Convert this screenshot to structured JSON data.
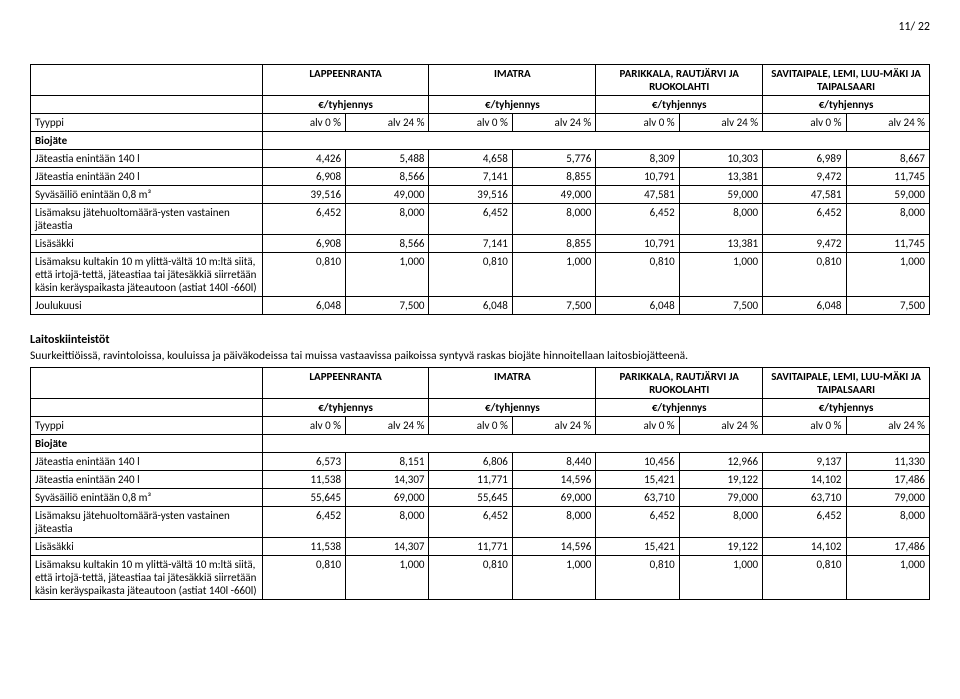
{
  "page_number": "11/ 22",
  "cities": [
    "LAPPEENRANTA",
    "IMATRA",
    "PARIKKALA, RAUTJÄRVI JA RUOKOLAHTI",
    "SAVITAIPALE, LEMI, LUU-MÄKI JA TAIPALSAARI"
  ],
  "unit_label": "€/tyhjennys",
  "type_label": "Tyyppi",
  "vat_labels": [
    "alv 0 %",
    "alv 24 %"
  ],
  "section1": {
    "category": "Biojäte",
    "rows": [
      {
        "label": "Jäteastia enintään 140 l",
        "vals": [
          "4,426",
          "5,488",
          "4,658",
          "5,776",
          "8,309",
          "10,303",
          "6,989",
          "8,667"
        ]
      },
      {
        "label": "Jäteastia enintään 240 l",
        "vals": [
          "6,908",
          "8,566",
          "7,141",
          "8,855",
          "10,791",
          "13,381",
          "9,472",
          "11,745"
        ]
      },
      {
        "label": "Syväsäiliö enintään 0,8 m³",
        "vals": [
          "39,516",
          "49,000",
          "39,516",
          "49,000",
          "47,581",
          "59,000",
          "47,581",
          "59,000"
        ]
      },
      {
        "label": "Lisämaksu jätehuoltomäärä-ysten vastainen jäteastia",
        "vals": [
          "6,452",
          "8,000",
          "6,452",
          "8,000",
          "6,452",
          "8,000",
          "6,452",
          "8,000"
        ]
      },
      {
        "label": "Lisäsäkki",
        "vals": [
          "6,908",
          "8,566",
          "7,141",
          "8,855",
          "10,791",
          "13,381",
          "9,472",
          "11,745"
        ]
      },
      {
        "label": "Lisämaksu kultakin 10 m ylittä-vältä 10 m:ltä siitä, että irtojä-tettä, jäteastiaa tai jätesäkkiä siirretään käsin keräyspaikasta jäteautoon (astiat 140l -660l)",
        "vals": [
          "0,810",
          "1,000",
          "0,810",
          "1,000",
          "0,810",
          "1,000",
          "0,810",
          "1,000"
        ]
      },
      {
        "label": "Joulukuusi",
        "vals": [
          "6,048",
          "7,500",
          "6,048",
          "7,500",
          "6,048",
          "7,500",
          "6,048",
          "7,500"
        ]
      }
    ]
  },
  "mid_title": "Laitoskiinteistöt",
  "mid_desc": "Suurkeittiöissä, ravintoloissa, kouluissa ja päiväkodeissa tai muissa vastaavissa paikoissa syntyvä raskas biojäte hinnoitellaan laitosbiojätteenä.",
  "section2": {
    "category": "Biojäte",
    "rows": [
      {
        "label": "Jäteastia enintään 140 l",
        "vals": [
          "6,573",
          "8,151",
          "6,806",
          "8,440",
          "10,456",
          "12,966",
          "9,137",
          "11,330"
        ]
      },
      {
        "label": "Jäteastia enintään 240 l",
        "vals": [
          "11,538",
          "14,307",
          "11,771",
          "14,596",
          "15,421",
          "19,122",
          "14,102",
          "17,486"
        ]
      },
      {
        "label": "Syväsäiliö enintään 0,8 m³",
        "vals": [
          "55,645",
          "69,000",
          "55,645",
          "69,000",
          "63,710",
          "79,000",
          "63,710",
          "79,000"
        ]
      },
      {
        "label": "Lisämaksu jätehuoltomäärä-ysten vastainen jäteastia",
        "vals": [
          "6,452",
          "8,000",
          "6,452",
          "8,000",
          "6,452",
          "8,000",
          "6,452",
          "8,000"
        ]
      },
      {
        "label": "Lisäsäkki",
        "vals": [
          "11,538",
          "14,307",
          "11,771",
          "14,596",
          "15,421",
          "19,122",
          "14,102",
          "17,486"
        ]
      },
      {
        "label": "Lisämaksu kultakin 10 m ylittä-vältä 10 m:ltä siitä, että irtojä-tettä, jäteastiaa tai jätesäkkiä siirretään käsin keräyspaikasta jäteautoon (astiat 140l -660l)",
        "vals": [
          "0,810",
          "1,000",
          "0,810",
          "1,000",
          "0,810",
          "1,000",
          "0,810",
          "1,000"
        ]
      }
    ]
  }
}
